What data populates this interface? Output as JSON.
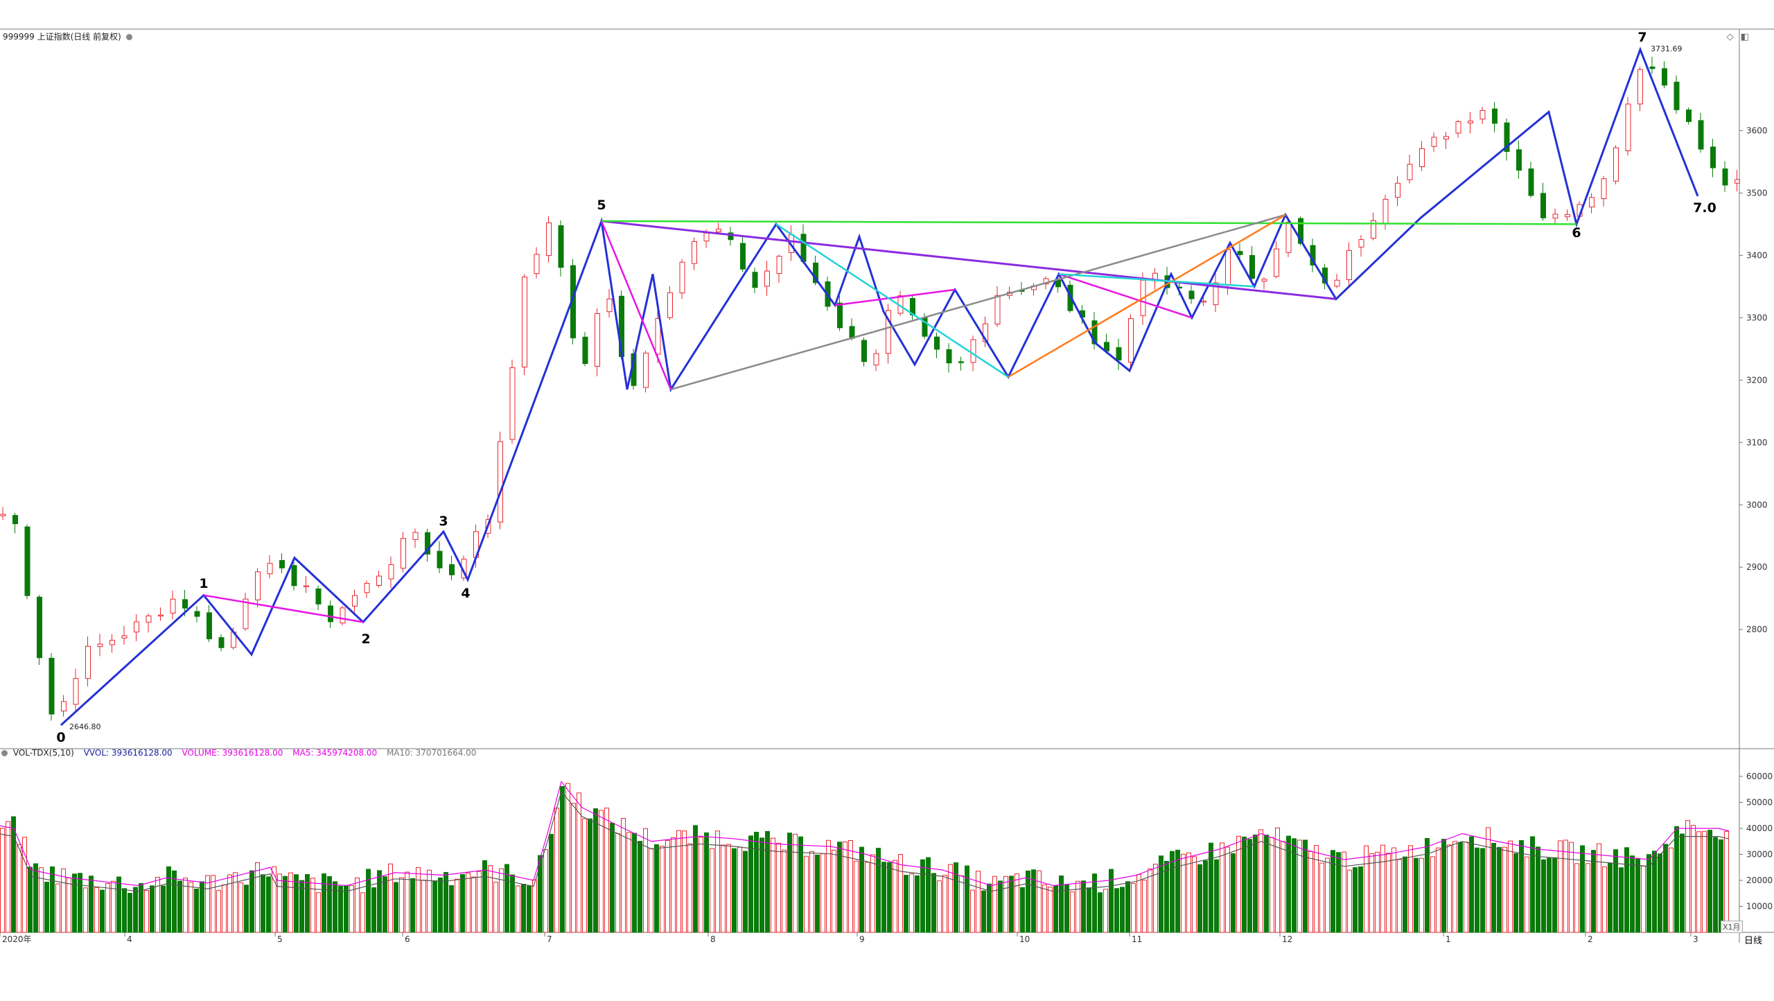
{
  "header": {
    "title": "999999 上证指数(日线 前复权)",
    "vol_title": "VOL-TDX(5,10)",
    "vol_label": "VVOL: 393616128.00",
    "volume_label": "VOLUME: 393616128.00",
    "ma5_label": "MA5: 345974208.00",
    "ma10_label": "MA10: 370701664.00"
  },
  "colors": {
    "up": "#e8262d",
    "down": "#0a7a0a",
    "wave": "#2431d8",
    "magenta": "#e614e6",
    "purple": "#8a2be2",
    "cyan": "#22d3d6",
    "green_line": "#2fe12f",
    "gray_line": "#8a8a8a",
    "orange": "#ff7a1a",
    "ma5": "#e600e6",
    "ma10": "#555555"
  },
  "chart_data": [
    {
      "type": "candlestick",
      "title": "999999 上证指数(日线 前复权)",
      "ylim": [
        2630,
        3780
      ],
      "y_ticks": [
        "2800",
        "2900",
        "3000",
        "3100",
        "3200",
        "3300",
        "3400",
        "3500",
        "3600"
      ],
      "x_ticks": [
        "2020年",
        "4",
        "5",
        "6",
        "7",
        "8",
        "9",
        "10",
        "11",
        "12",
        "1",
        "2",
        "3"
      ],
      "annotations": [
        {
          "text": "2646.80"
        },
        {
          "text": "3731.69"
        }
      ],
      "wave_labels": [
        "0",
        "1",
        "2",
        "3",
        "4",
        "5",
        "6",
        "7",
        "7.0"
      ],
      "period": "日线",
      "period_badge": "X1月"
    },
    {
      "type": "bar",
      "title": "VOL-TDX(5,10)",
      "ylim": [
        0,
        68000
      ],
      "y_ticks": [
        "10000",
        "20000",
        "30000",
        "40000",
        "50000",
        "60000"
      ]
    }
  ]
}
